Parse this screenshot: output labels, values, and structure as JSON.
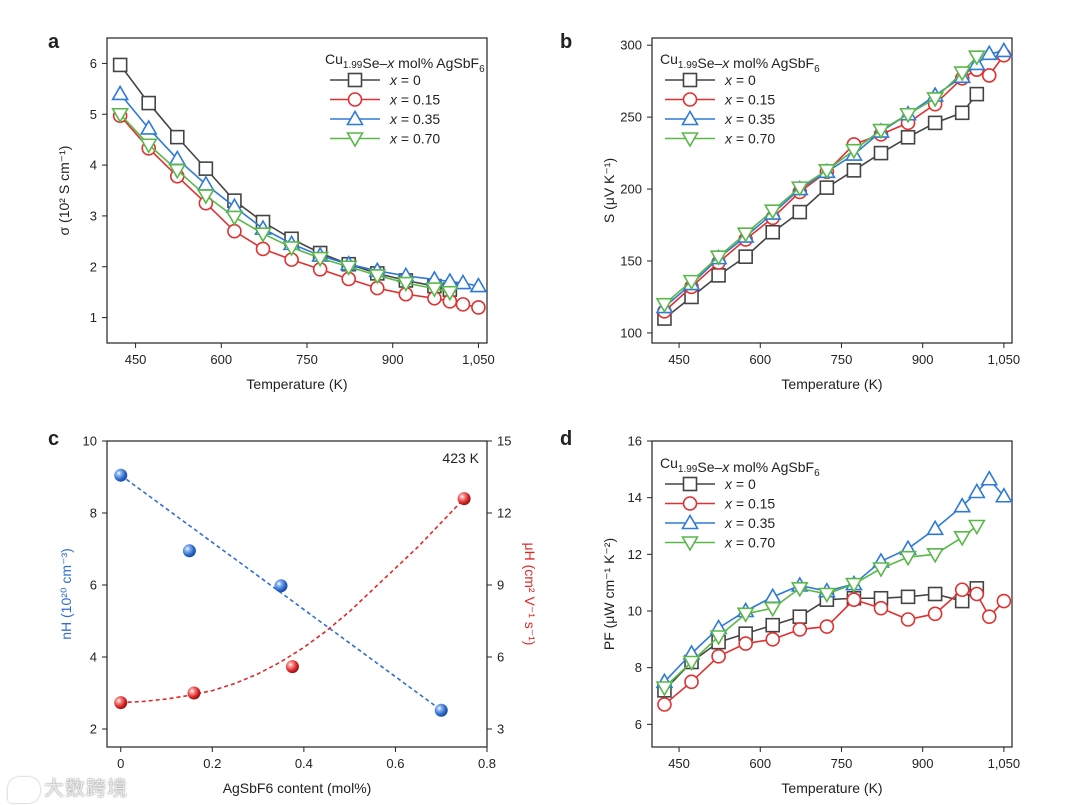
{
  "watermark": "大数跨境",
  "chart_data": [
    {
      "id": "a",
      "type": "line",
      "panel_label": "a",
      "xlabel": "Temperature (K)",
      "ylabel": "σ (10² S cm⁻¹)",
      "xlim": [
        400,
        1065
      ],
      "ylim": [
        0.5,
        6.5
      ],
      "xticks": [
        450,
        600,
        750,
        900,
        1050
      ],
      "xtick_labels": [
        "450",
        "600",
        "750",
        "900",
        "1,050"
      ],
      "yticks": [
        1,
        2,
        3,
        4,
        5,
        6
      ],
      "ytick_labels": [
        "1",
        "2",
        "3",
        "4",
        "5",
        "6"
      ],
      "legend": {
        "title": "Cu1.99Se–x mol% AgSbF6",
        "position": "top-right"
      },
      "series": [
        {
          "name": "x = 0",
          "marker": "square",
          "color": "#444444",
          "x": [
            423,
            473,
            523,
            573,
            623,
            673,
            723,
            773,
            823,
            873,
            923,
            973,
            1000
          ],
          "y": [
            5.97,
            5.22,
            4.55,
            3.93,
            3.3,
            2.88,
            2.55,
            2.27,
            2.05,
            1.87,
            1.73,
            1.62,
            1.55
          ]
        },
        {
          "name": "x = 0.15",
          "marker": "circle",
          "color": "#e03030",
          "x": [
            423,
            473,
            523,
            573,
            623,
            673,
            723,
            773,
            823,
            873,
            923,
            973,
            1000,
            1023,
            1050
          ],
          "y": [
            4.97,
            4.33,
            3.78,
            3.25,
            2.7,
            2.35,
            2.14,
            1.95,
            1.76,
            1.58,
            1.46,
            1.38,
            1.32,
            1.26,
            1.2
          ]
        },
        {
          "name": "x = 0.35",
          "marker": "triangle-up",
          "color": "#2f7ad6",
          "x": [
            423,
            473,
            523,
            573,
            623,
            673,
            723,
            773,
            823,
            873,
            923,
            973,
            1000,
            1023,
            1050
          ],
          "y": [
            5.4,
            4.72,
            4.12,
            3.62,
            3.18,
            2.75,
            2.45,
            2.22,
            2.05,
            1.92,
            1.82,
            1.75,
            1.71,
            1.68,
            1.62
          ]
        },
        {
          "name": "x = 0.70",
          "marker": "triangle-down",
          "color": "#5ab84a",
          "x": [
            423,
            473,
            523,
            573,
            623,
            673,
            723,
            773,
            823,
            873,
            923,
            973,
            1000
          ],
          "y": [
            5.0,
            4.4,
            3.9,
            3.4,
            2.98,
            2.65,
            2.38,
            2.17,
            2.0,
            1.83,
            1.68,
            1.57,
            1.5
          ]
        }
      ]
    },
    {
      "id": "b",
      "type": "line",
      "panel_label": "b",
      "xlabel": "Temperature (K)",
      "ylabel": "S (μV K⁻¹)",
      "xlim": [
        400,
        1065
      ],
      "ylim": [
        93,
        305
      ],
      "xticks": [
        450,
        600,
        750,
        900,
        1050
      ],
      "xtick_labels": [
        "450",
        "600",
        "750",
        "900",
        "1,050"
      ],
      "yticks": [
        100,
        150,
        200,
        250,
        300
      ],
      "ytick_labels": [
        "100",
        "150",
        "200",
        "250",
        "300"
      ],
      "legend": {
        "title": "Cu1.99Se–x mol% AgSbF6",
        "position": "top-left"
      },
      "series": [
        {
          "name": "x = 0",
          "marker": "square",
          "color": "#444444",
          "x": [
            423,
            473,
            523,
            573,
            623,
            673,
            723,
            773,
            823,
            873,
            923,
            973,
            1000
          ],
          "y": [
            110,
            125,
            140,
            153,
            170,
            184,
            201,
            213,
            225,
            236,
            246,
            253,
            266
          ]
        },
        {
          "name": "x = 0.15",
          "marker": "circle",
          "color": "#e03030",
          "x": [
            423,
            473,
            523,
            573,
            623,
            673,
            723,
            773,
            823,
            873,
            923,
            973,
            1000,
            1023,
            1050
          ],
          "y": [
            115,
            132,
            149,
            165,
            180,
            198,
            212,
            231,
            238,
            246,
            259,
            277,
            283,
            279,
            293
          ]
        },
        {
          "name": "x = 0.35",
          "marker": "triangle-up",
          "color": "#2f7ad6",
          "x": [
            423,
            473,
            523,
            573,
            623,
            673,
            723,
            773,
            823,
            873,
            923,
            973,
            1000,
            1023,
            1050
          ],
          "y": [
            118,
            134,
            152,
            167,
            183,
            200,
            212,
            224,
            240,
            252,
            265,
            278,
            287,
            294,
            296
          ]
        },
        {
          "name": "x = 0.70",
          "marker": "triangle-down",
          "color": "#5ab84a",
          "x": [
            423,
            473,
            523,
            573,
            623,
            673,
            723,
            773,
            823,
            873,
            923,
            973,
            1000
          ],
          "y": [
            120,
            136,
            153,
            169,
            185,
            201,
            213,
            227,
            241,
            252,
            263,
            281,
            292
          ]
        }
      ]
    },
    {
      "id": "c",
      "type": "scatter",
      "panel_label": "c",
      "annotation": "423 K",
      "xlabel": "AgSbF6 content (mol%)",
      "ylabel_left": "nH (10²⁰ cm⁻³)",
      "ylabel_right": "μH (cm² V⁻¹ s⁻¹)",
      "xlim": [
        -0.03,
        0.8
      ],
      "ylim_left": [
        1.5,
        10
      ],
      "ylim_right": [
        2.25,
        15
      ],
      "xticks": [
        0,
        0.2,
        0.4,
        0.6,
        0.8
      ],
      "xtick_labels": [
        "0",
        "0.2",
        "0.4",
        "0.6",
        "0.8"
      ],
      "yticks_left": [
        2,
        4,
        6,
        8,
        10
      ],
      "ytick_labels_left": [
        "2",
        "4",
        "6",
        "8",
        "10"
      ],
      "yticks_right": [
        3,
        6,
        9,
        12,
        15
      ],
      "ytick_labels_right": [
        "3",
        "6",
        "9",
        "12",
        "15"
      ],
      "series": [
        {
          "name": "nH",
          "axis": "left",
          "color": "#2f6fd0",
          "x": [
            0,
            0.15,
            0.35,
            0.7
          ],
          "y": [
            9.05,
            6.95,
            5.98,
            2.52
          ],
          "fit": {
            "kind": "linear",
            "x": [
              0,
              0.7
            ],
            "y": [
              9.05,
              2.52
            ]
          }
        },
        {
          "name": "μH",
          "axis": "right",
          "color": "#e02828",
          "x": [
            0,
            0.16,
            0.375,
            0.75
          ],
          "y": [
            4.1,
            4.5,
            5.6,
            12.6
          ],
          "fit": {
            "kind": "curve",
            "x": [
              0,
              0.05,
              0.1,
              0.15,
              0.2,
              0.25,
              0.3,
              0.35,
              0.4,
              0.45,
              0.5,
              0.55,
              0.6,
              0.65,
              0.7,
              0.75
            ],
            "y": [
              4.1,
              4.15,
              4.25,
              4.4,
              4.6,
              4.9,
              5.3,
              5.8,
              6.4,
              7.1,
              7.9,
              8.8,
              9.7,
              10.6,
              11.6,
              12.6
            ]
          }
        }
      ]
    },
    {
      "id": "d",
      "type": "line",
      "panel_label": "d",
      "xlabel": "Temperature (K)",
      "ylabel": "PF (μW cm⁻¹ K⁻²)",
      "xlim": [
        400,
        1065
      ],
      "ylim": [
        5.2,
        16
      ],
      "xticks": [
        450,
        600,
        750,
        900,
        1050
      ],
      "xtick_labels": [
        "450",
        "600",
        "750",
        "900",
        "1,050"
      ],
      "yticks": [
        6,
        8,
        10,
        12,
        14,
        16
      ],
      "ytick_labels": [
        "6",
        "8",
        "10",
        "12",
        "14",
        "16"
      ],
      "legend": {
        "title": "Cu1.99Se–x mol% AgSbF6",
        "position": "top-left"
      },
      "series": [
        {
          "name": "x = 0",
          "marker": "square",
          "color": "#444444",
          "x": [
            423,
            473,
            523,
            573,
            623,
            673,
            723,
            773,
            823,
            873,
            923,
            973,
            1000
          ],
          "y": [
            7.2,
            8.2,
            8.9,
            9.2,
            9.5,
            9.8,
            10.4,
            10.45,
            10.45,
            10.5,
            10.6,
            10.35,
            10.8
          ]
        },
        {
          "name": "x = 0.15",
          "marker": "circle",
          "color": "#e03030",
          "x": [
            423,
            473,
            523,
            573,
            623,
            673,
            723,
            773,
            823,
            873,
            923,
            973,
            1000,
            1023,
            1050
          ],
          "y": [
            6.7,
            7.5,
            8.4,
            8.85,
            9.0,
            9.35,
            9.45,
            10.4,
            10.1,
            9.7,
            9.9,
            10.75,
            10.6,
            9.8,
            10.35
          ]
        },
        {
          "name": "x = 0.35",
          "marker": "triangle-up",
          "color": "#2f7ad6",
          "x": [
            423,
            473,
            523,
            573,
            623,
            673,
            723,
            773,
            823,
            873,
            923,
            973,
            1000,
            1023,
            1050
          ],
          "y": [
            7.5,
            8.5,
            9.4,
            10.0,
            10.5,
            10.9,
            10.7,
            10.95,
            11.75,
            12.2,
            12.9,
            13.7,
            14.2,
            14.65,
            14.05
          ]
        },
        {
          "name": "x = 0.70",
          "marker": "triangle-down",
          "color": "#5ab84a",
          "x": [
            423,
            473,
            523,
            573,
            623,
            673,
            723,
            773,
            823,
            873,
            923,
            973,
            1000
          ],
          "y": [
            7.3,
            8.2,
            9.1,
            9.9,
            10.1,
            10.8,
            10.6,
            10.95,
            11.5,
            11.9,
            12.0,
            12.6,
            13.0
          ]
        }
      ]
    }
  ]
}
